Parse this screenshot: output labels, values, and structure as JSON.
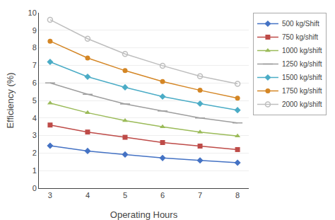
{
  "chart_data": {
    "type": "line",
    "x": [
      3,
      4,
      5,
      6,
      7,
      8
    ],
    "series": [
      {
        "name": "500 kg/Shift",
        "color": "#4472C4",
        "marker": "diamond",
        "values": [
          2.42,
          2.12,
          1.92,
          1.72,
          1.58,
          1.45
        ]
      },
      {
        "name": "750 kg/shift",
        "color": "#BE4B48",
        "marker": "square",
        "values": [
          3.6,
          3.2,
          2.9,
          2.6,
          2.4,
          2.2
        ]
      },
      {
        "name": "1000 kg/shift",
        "color": "#9BBB59",
        "marker": "triangle-up",
        "values": [
          4.85,
          4.3,
          3.85,
          3.5,
          3.2,
          2.97
        ]
      },
      {
        "name": "1250 kg/shift",
        "color": "#9E9E9E",
        "marker": "line-ew",
        "values": [
          6.0,
          5.35,
          4.8,
          4.4,
          4.0,
          3.72
        ]
      },
      {
        "name": "1500 kg/shift",
        "color": "#4BACC6",
        "marker": "diamond",
        "values": [
          7.2,
          6.35,
          5.75,
          5.22,
          4.82,
          4.45
        ]
      },
      {
        "name": "1750 kg/shift",
        "color": "#D48625",
        "marker": "circle",
        "values": [
          8.38,
          7.42,
          6.7,
          6.08,
          5.58,
          5.13
        ]
      },
      {
        "name": "2000 kg/shift",
        "color": "#BEBEBE",
        "marker": "circle-open",
        "values": [
          9.6,
          8.52,
          7.65,
          6.98,
          6.38,
          5.95
        ]
      }
    ],
    "xlabel": "Operating Hours",
    "ylabel": "Efficiency (%)",
    "xlim": [
      2.7,
      8.3
    ],
    "ylim": [
      0,
      10
    ],
    "xticks": [
      3,
      4,
      5,
      6,
      7,
      8
    ],
    "yticks": [
      0,
      1,
      2,
      3,
      4,
      5,
      6,
      7,
      8,
      9,
      10
    ],
    "grid": true,
    "legend": "upper right"
  }
}
